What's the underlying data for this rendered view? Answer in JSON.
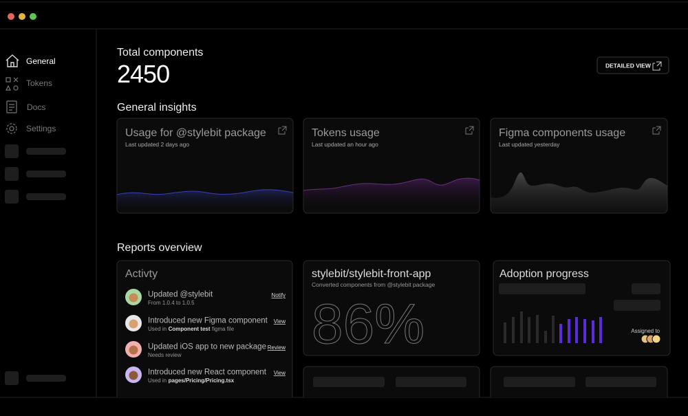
{
  "sidebar": {
    "items": [
      "General",
      "Tokens",
      "Docs",
      "Settings"
    ]
  },
  "header": {
    "label": "Total components",
    "value": 2450,
    "button": "DETAILED VIEW"
  },
  "insights": {
    "title": "General insights",
    "cards": [
      {
        "title": "Usage for @stylebit package",
        "subtitle": "Last updated 2 days ago"
      },
      {
        "title": "Tokens usage",
        "subtitle": "Last updated an hour ago"
      },
      {
        "title": "Figma components usage",
        "subtitle": "Last updated yesterday"
      }
    ]
  },
  "reports": {
    "title": "Reports overview",
    "activity": {
      "title": "Activty",
      "items": [
        {
          "title": "Updated @stylebit",
          "subtitle": "From 1.0.4 to 1.0.5",
          "action": "Notify"
        },
        {
          "title": "Introduced new Figma component",
          "subtitle": {
            "pre": "Used in",
            "bold": "Component test",
            "post": "figma file"
          },
          "action": "View"
        },
        {
          "title": "Updated iOS app to new package",
          "subtitle": "Needs review",
          "action": "Review"
        },
        {
          "title": "Introduced new React component",
          "subtitle": {
            "pre": "Used in",
            "bold": "pages/Pricing/Pricing.tsx"
          },
          "action": "View"
        }
      ]
    },
    "repo": {
      "title": "stylebit/stylebit-front-app",
      "subtitle": "Converted components from @stylebit package",
      "value": "86%"
    },
    "adoption": {
      "title": "Adoption progress",
      "assigned": "Assigned to"
    }
  }
}
